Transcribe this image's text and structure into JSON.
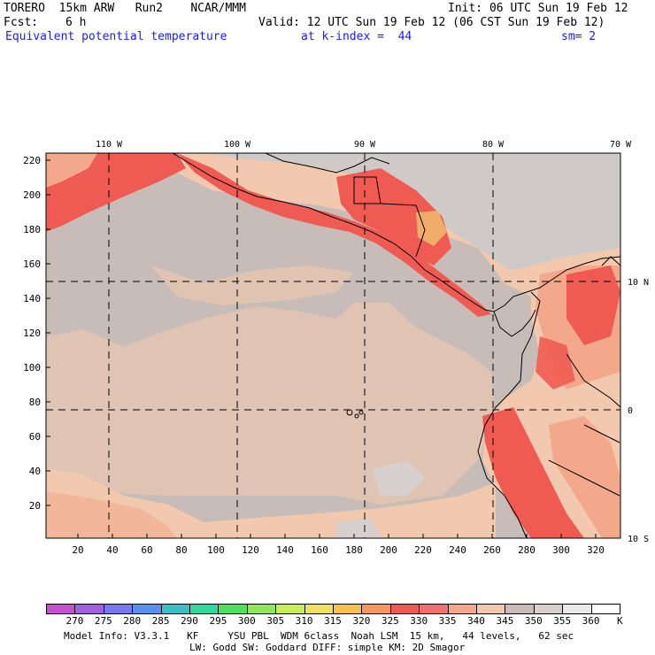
{
  "header": {
    "model": "TORERO  15km ARW   Run2    NCAR/MMM",
    "init": "Init: 06 UTC Sun 19 Feb 12",
    "fcst_label": "Fcst:",
    "fcst_value": "6 h",
    "valid": "Valid: 12 UTC Sun 19 Feb 12 (06 CST Sun 19 Feb 12)",
    "field": "Equivalent potential temperature",
    "level": "at k-index =  44",
    "smoothing": "sm= 2"
  },
  "map": {
    "lon_labels": [
      "110 W",
      "100 W",
      "90 W",
      "80 W",
      "70 W"
    ],
    "lat_labels": [
      "10 N",
      "0",
      "10 S"
    ],
    "y_ticks": [
      "220",
      "200",
      "180",
      "160",
      "140",
      "120",
      "100",
      "80",
      "60",
      "40",
      "20"
    ],
    "x_ticks": [
      "20",
      "40",
      "60",
      "80",
      "100",
      "120",
      "140",
      "160",
      "180",
      "200",
      "220",
      "240",
      "260",
      "280",
      "300",
      "320"
    ],
    "colors": {
      "background": "#c8bcb9",
      "warm_band": "#f2c8ae",
      "warm_mid": "#f3a88c",
      "hot": "#ef5b53",
      "very_hot": "#e8343a",
      "land_grey": "#cfcac8",
      "gridline": "#000000"
    }
  },
  "colorbar": {
    "labels": [
      "270",
      "275",
      "280",
      "285",
      "290",
      "295",
      "300",
      "305",
      "310",
      "315",
      "320",
      "325",
      "330",
      "335",
      "340",
      "345",
      "350",
      "355",
      "360"
    ],
    "unit": "K",
    "colors": [
      "#c850d0",
      "#a060e0",
      "#7878f0",
      "#5a90ee",
      "#3cc0c8",
      "#30d8a0",
      "#50e060",
      "#90e858",
      "#c8ee5a",
      "#f0e060",
      "#f4c050",
      "#f49860",
      "#ef5b53",
      "#f07070",
      "#f3a88c",
      "#f2c8ae",
      "#c8bcb9",
      "#d8d0cf",
      "#ebe8e8",
      "#ffffff"
    ]
  },
  "footer": {
    "line1": "Model Info: V3.3.1   KF     YSU PBL  WDM 6class  Noah LSM  15 km,   44 levels,   62 sec",
    "line2": "LW: Godd SW: Goddard DIFF: simple KM: 2D Smagor"
  }
}
